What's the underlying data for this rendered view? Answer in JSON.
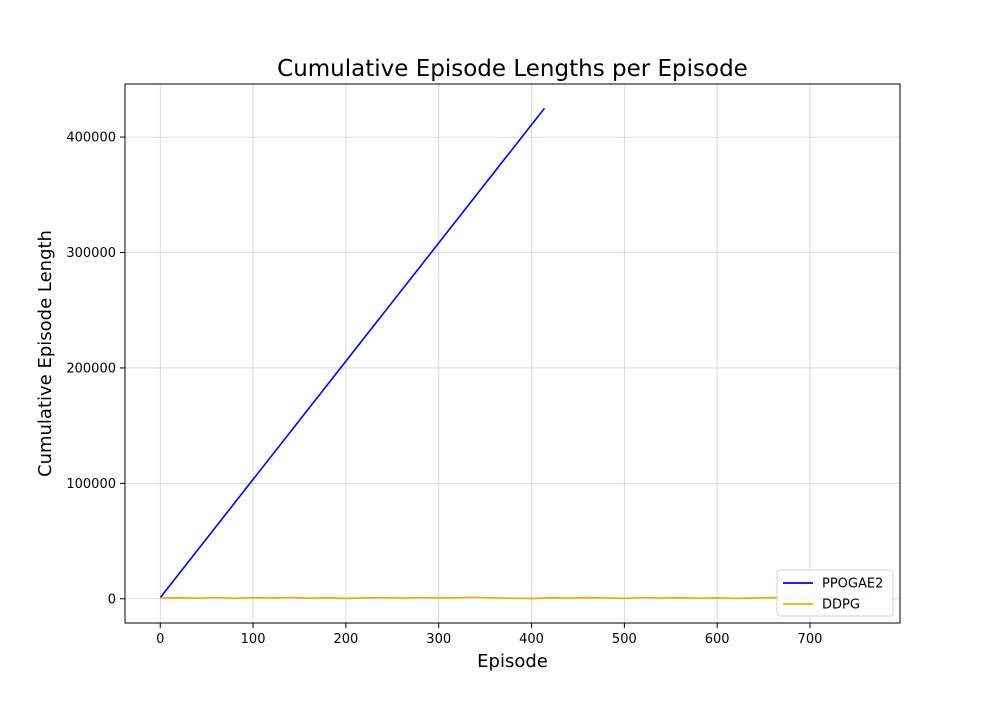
{
  "chart_data": {
    "type": "line",
    "title": "Cumulative Episode Lengths per Episode",
    "xlabel": "Episode",
    "ylabel": "Cumulative Episode Length",
    "xlim": [
      -38,
      797
    ],
    "ylim": [
      -21000,
      446000
    ],
    "x_ticks": [
      0,
      100,
      200,
      300,
      400,
      500,
      600,
      700
    ],
    "y_ticks": [
      0,
      100000,
      200000,
      300000,
      400000
    ],
    "grid": true,
    "legend_position": "lower-right",
    "series": [
      {
        "name": "PPOGAE2",
        "color": "#0000ff",
        "x": [
          0,
          414
        ],
        "y": [
          1000,
          425000
        ]
      },
      {
        "name": "DDPG",
        "color": "#ffa500",
        "x": [
          0,
          20,
          40,
          60,
          80,
          100,
          120,
          140,
          160,
          180,
          200,
          220,
          240,
          260,
          280,
          300,
          320,
          340,
          360,
          380,
          400,
          420,
          440,
          460,
          480,
          500,
          520,
          540,
          560,
          580,
          600,
          620,
          640,
          660,
          680,
          700,
          720,
          740,
          760
        ],
        "y": [
          600,
          900,
          500,
          1100,
          400,
          1000,
          700,
          1200,
          500,
          900,
          300,
          800,
          1000,
          600,
          1100,
          700,
          900,
          1300,
          800,
          500,
          200,
          900,
          600,
          1000,
          700,
          400,
          1100,
          600,
          900,
          500,
          800,
          300,
          700,
          1000,
          400,
          800,
          500,
          700,
          400
        ]
      }
    ]
  }
}
